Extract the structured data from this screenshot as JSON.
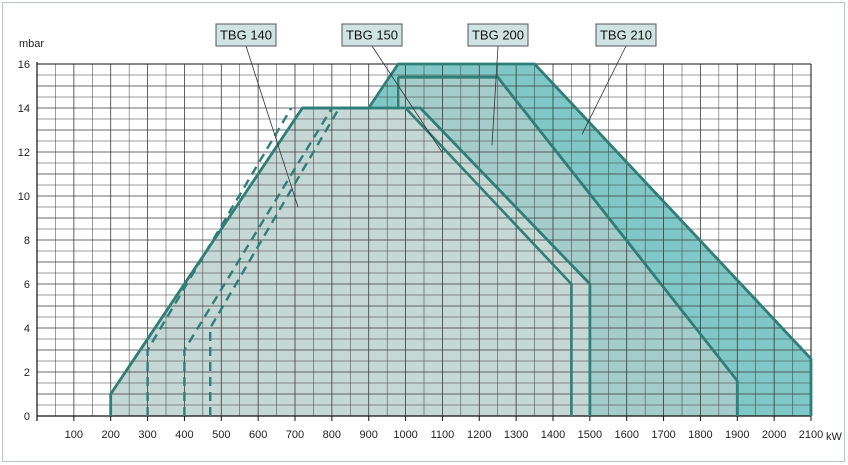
{
  "chart_data": {
    "type": "area",
    "title": "",
    "xlabel": "kW",
    "ylabel": "mbar",
    "xlim": [
      0,
      2100
    ],
    "ylim": [
      0,
      16
    ],
    "x_ticks": [
      100,
      200,
      300,
      400,
      500,
      600,
      700,
      800,
      900,
      1000,
      1100,
      1200,
      1300,
      1400,
      1500,
      1600,
      1700,
      1800,
      1900,
      2000,
      2100
    ],
    "x_tick_labels": [
      "100",
      "200",
      "300",
      "400",
      "500",
      "600",
      "700",
      "800",
      "900",
      "1000",
      "1100",
      "1200",
      "1300",
      "1400",
      "1500",
      "1600",
      "1700",
      "1800",
      "1900",
      "2000",
      "2100"
    ],
    "y_ticks": [
      0,
      2,
      4,
      6,
      8,
      10,
      12,
      14,
      16
    ],
    "y_tick_labels": [
      "0",
      "2",
      "4",
      "6",
      "8",
      "10",
      "12",
      "14",
      "16"
    ],
    "grid": true,
    "colors": {
      "grid": "#3a3a3a",
      "outline": "#2f7e78",
      "fill_main": "#c6d8d6",
      "fill_200": "#a3cccb",
      "fill_210": "#80c8c8",
      "label_bg": "#cfe3e3"
    },
    "series": [
      {
        "name": "TBG 140",
        "style": "dashed",
        "points": [
          [
            300,
            0
          ],
          [
            300,
            3
          ],
          [
            690,
            14
          ],
          [
            1000,
            14
          ],
          [
            1450,
            6
          ],
          [
            1450,
            0
          ]
        ]
      },
      {
        "name": "TBG 150",
        "style": "dashed",
        "points": [
          [
            400,
            0
          ],
          [
            400,
            3
          ],
          [
            800,
            14
          ],
          [
            1000,
            14
          ],
          [
            1450,
            6
          ],
          [
            1450,
            0
          ]
        ]
      },
      {
        "name": "TBG 200",
        "style": "solid",
        "points": [
          [
            200,
            0
          ],
          [
            200,
            1
          ],
          [
            720,
            14
          ],
          [
            1040,
            14
          ],
          [
            1500,
            6
          ],
          [
            1500,
            0
          ]
        ]
      },
      {
        "name": "TBG 210",
        "style": "solid",
        "points": [
          [
            980,
            15.4
          ],
          [
            1250,
            15.4
          ],
          [
            1900,
            1.6
          ],
          [
            1900,
            0
          ]
        ]
      }
    ],
    "extra_shapes": [
      {
        "role": "upper-envelope",
        "points": [
          [
            900,
            14
          ],
          [
            980,
            16
          ],
          [
            1350,
            16
          ],
          [
            2100,
            2.6
          ],
          [
            2100,
            0
          ]
        ]
      },
      {
        "role": "dashed-low-start",
        "points": [
          [
            470,
            0
          ],
          [
            470,
            4
          ],
          [
            570,
            5.3
          ]
        ]
      }
    ],
    "annotations": [
      {
        "text": "TBG 140",
        "series": "TBG 140"
      },
      {
        "text": "TBG 150",
        "series": "TBG 150"
      },
      {
        "text": "TBG 200",
        "series": "TBG 200"
      },
      {
        "text": "TBG 210",
        "series": "TBG 210"
      }
    ]
  }
}
